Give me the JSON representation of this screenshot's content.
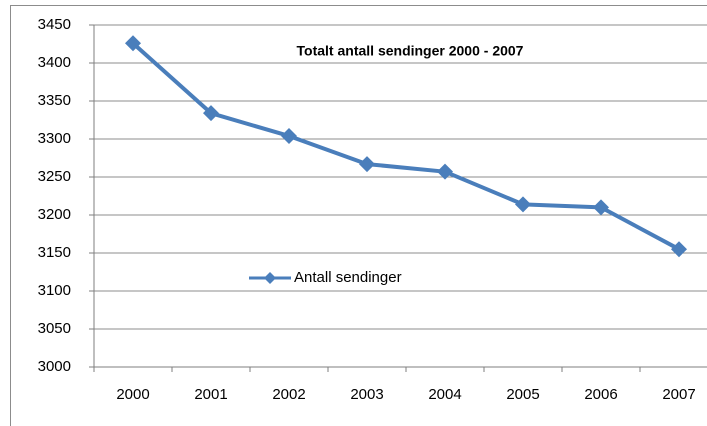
{
  "chart_data": {
    "type": "line",
    "title": "Totalt antall sendinger 2000 - 2007",
    "categories": [
      "2000",
      "2001",
      "2002",
      "2003",
      "2004",
      "2005",
      "2006",
      "2007"
    ],
    "series": [
      {
        "name": "Antall sendinger",
        "color": "#4a7ebb",
        "values": [
          3426,
          3334,
          3304,
          3267,
          3257,
          3214,
          3210,
          3155
        ]
      }
    ],
    "ylim": [
      3000,
      3450
    ],
    "yticks": [
      3000,
      3050,
      3100,
      3150,
      3200,
      3250,
      3300,
      3350,
      3400,
      3450
    ],
    "grid": true,
    "legend": "inside"
  }
}
